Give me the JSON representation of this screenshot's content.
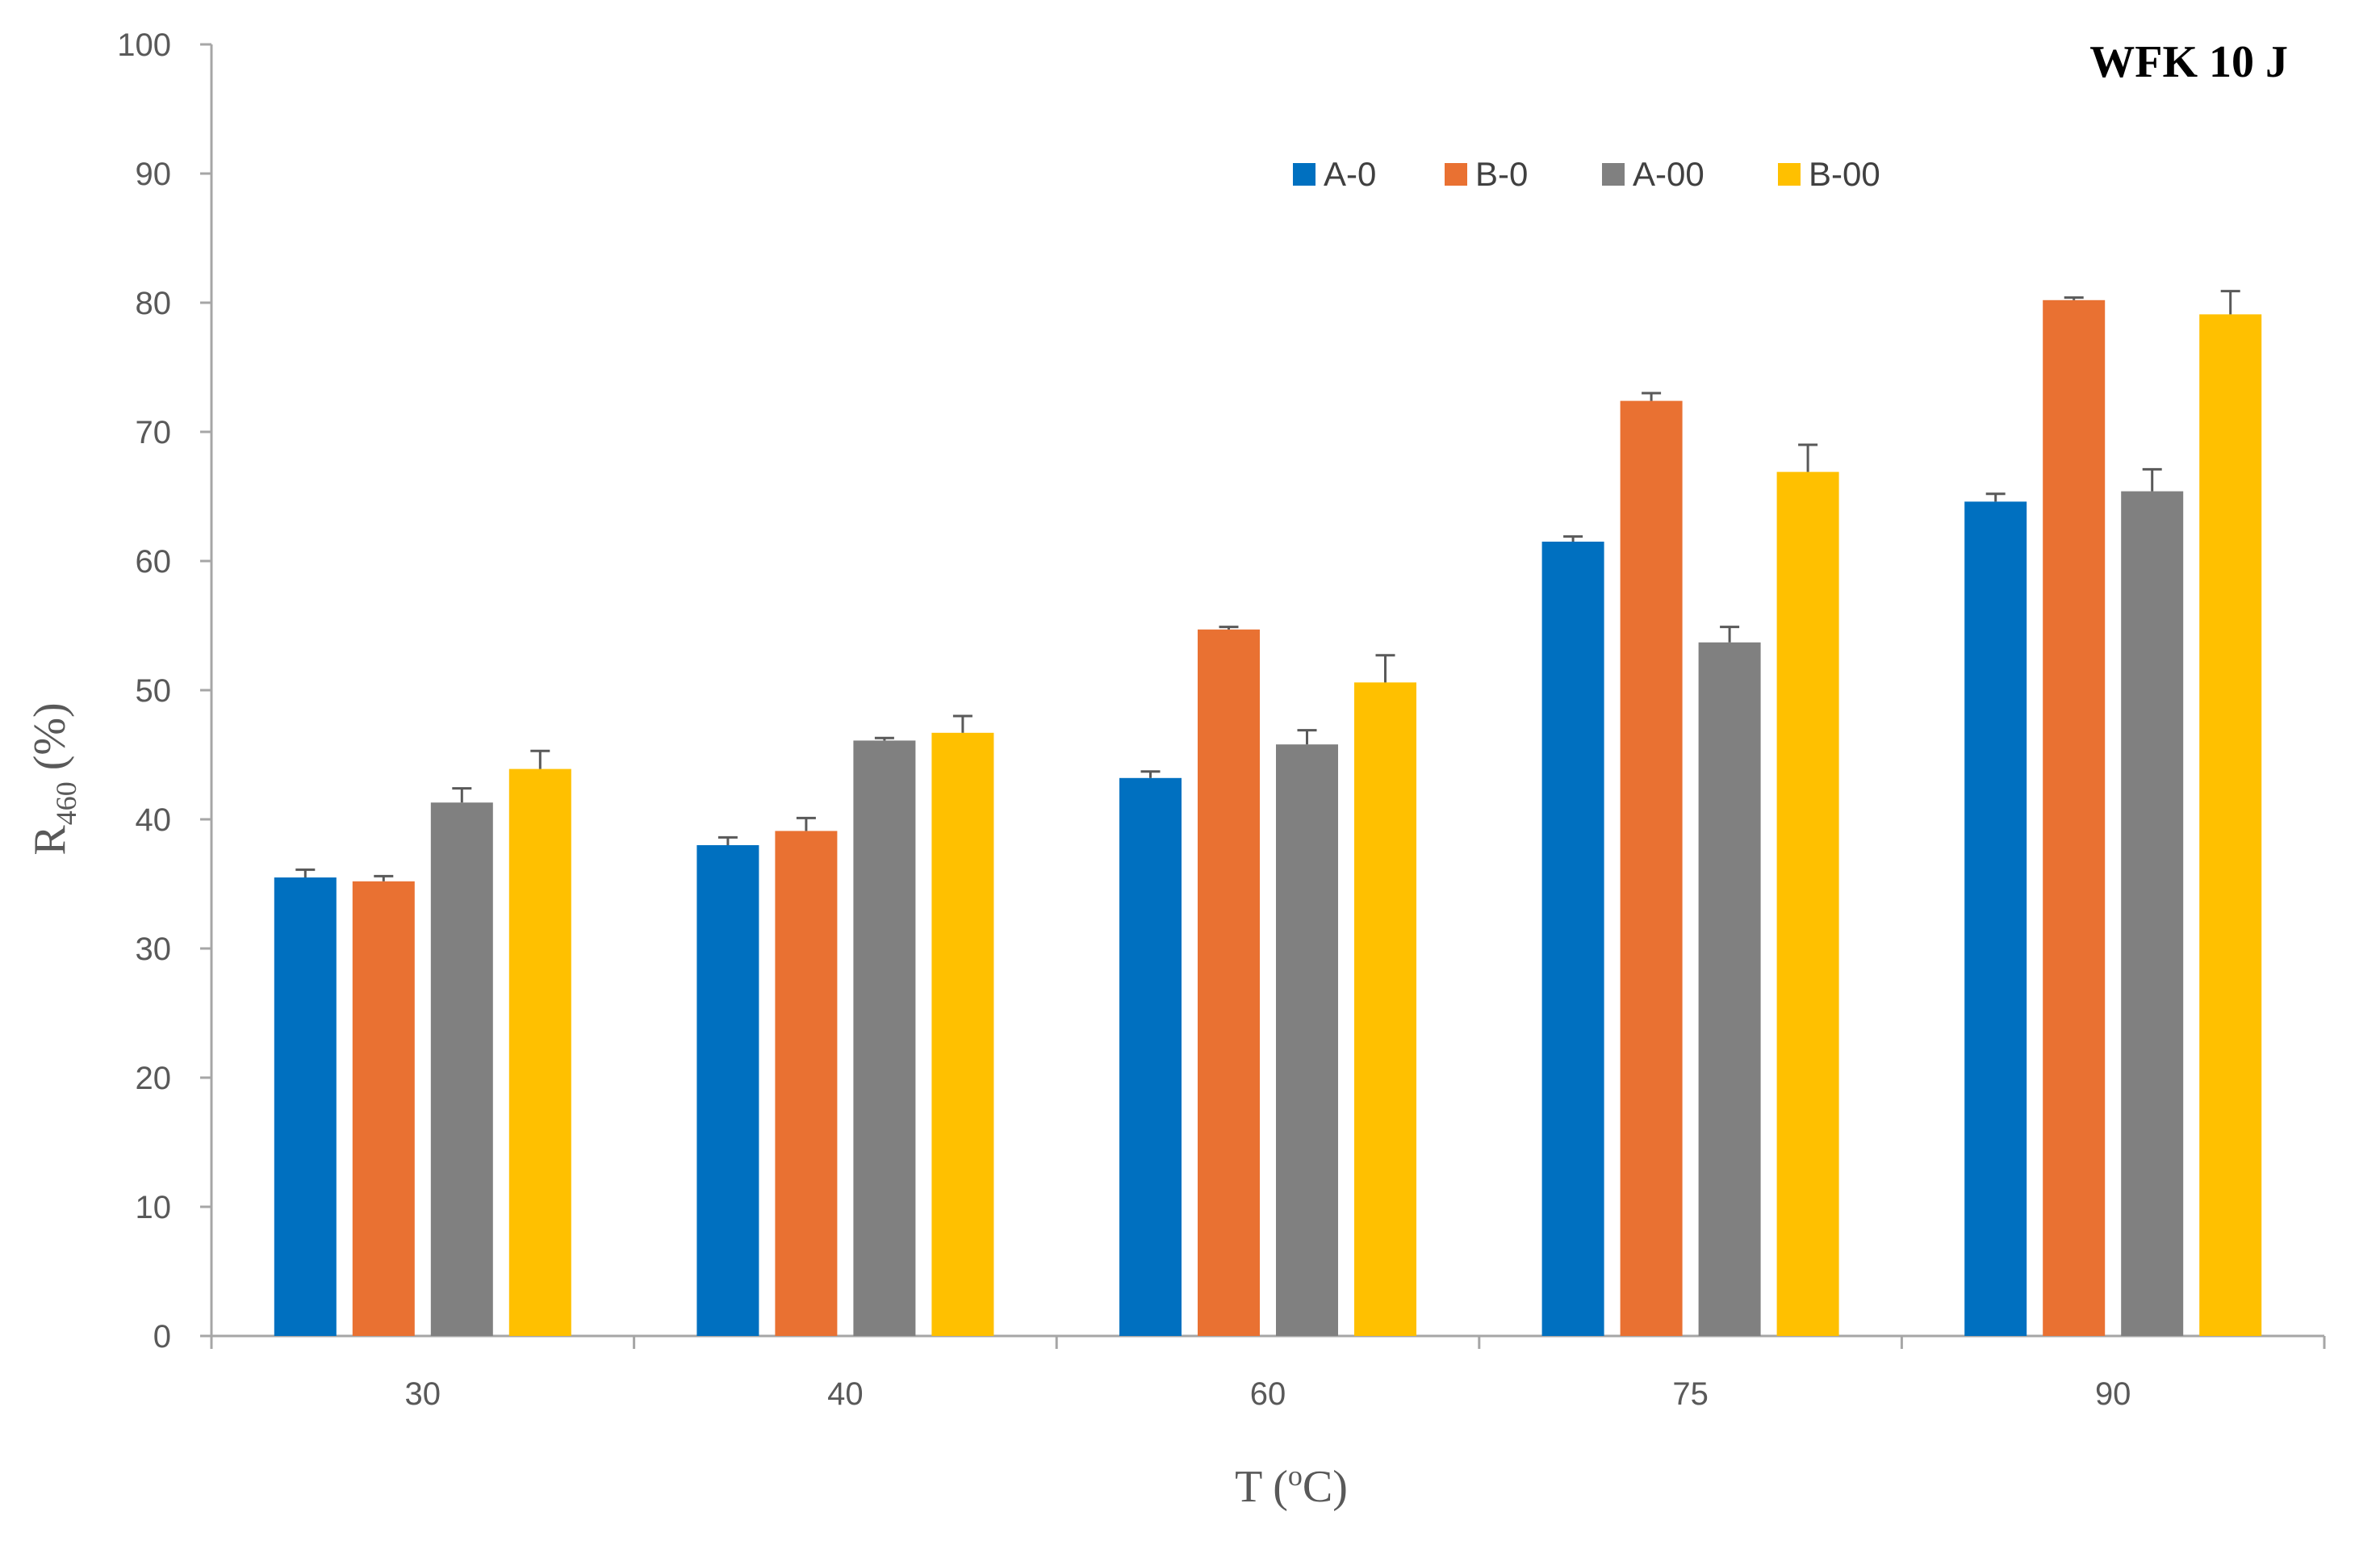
{
  "chart_data": {
    "type": "bar",
    "title": "WFK 10 J",
    "xlabel": "T (",
    "xlabel_sup": "o",
    "xlabel_unit": "C)",
    "ylabel": "R",
    "ylabel_sub": "460",
    "ylabel_unit": " (%)",
    "categories": [
      "30",
      "40",
      "60",
      "75",
      "90"
    ],
    "ylim": [
      0,
      100
    ],
    "yticks": [
      0,
      10,
      20,
      30,
      40,
      50,
      60,
      70,
      80,
      90,
      100
    ],
    "legend_position": "top-right",
    "grid": false,
    "series": [
      {
        "name": "A-0",
        "color": "#0070C0",
        "values": [
          35.5,
          38.0,
          43.2,
          61.5,
          64.6
        ],
        "errors": [
          0.6,
          0.6,
          0.5,
          0.4,
          0.6
        ]
      },
      {
        "name": "B-0",
        "color": "#E97132",
        "values": [
          35.2,
          39.1,
          54.7,
          72.4,
          80.2
        ],
        "errors": [
          0.4,
          1.0,
          0.2,
          0.6,
          0.2
        ]
      },
      {
        "name": "A-00",
        "color": "#808080",
        "values": [
          41.3,
          46.1,
          45.8,
          53.7,
          65.4
        ],
        "errors": [
          1.1,
          0.2,
          1.1,
          1.2,
          1.7
        ]
      },
      {
        "name": "B-00",
        "color": "#FFC000",
        "values": [
          43.9,
          46.7,
          50.6,
          66.9,
          79.1
        ],
        "errors": [
          1.4,
          1.3,
          2.1,
          2.1,
          1.8
        ]
      }
    ]
  }
}
